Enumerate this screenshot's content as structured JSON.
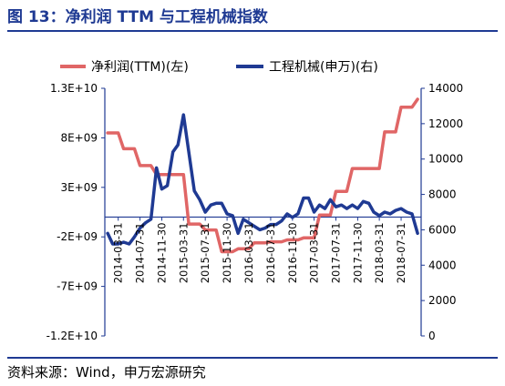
{
  "header": {
    "title": "图 13：净利润 TTM 与工程机械指数"
  },
  "footer": {
    "source": "资料来源：Wind，申万宏源研究"
  },
  "chart_data": {
    "type": "line",
    "legend_position": "top",
    "grid": false,
    "x_tick_labels": [
      "2014-03-31",
      "2014-07-31",
      "2014-11-30",
      "2015-03-31",
      "2015-07-31",
      "2015-11-30",
      "2016-03-31",
      "2016-07-31",
      "2016-11-30",
      "2017-03-31",
      "2017-07-31",
      "2017-11-30",
      "2018-03-31",
      "2018-07-31"
    ],
    "y_left": {
      "min": -12000000000,
      "max": 13000000000,
      "tick_labels": [
        "1.3E+10",
        "8E+09",
        "3E+09",
        "-2E+09",
        "-7E+09",
        "-1.2E+10"
      ]
    },
    "y_right": {
      "min": 0,
      "max": 14000,
      "tick_labels": [
        "14000",
        "12000",
        "10000",
        "8000",
        "6000",
        "4000",
        "2000",
        "0"
      ]
    },
    "series": [
      {
        "name": "净利润(TTM)(左)",
        "axis": "left",
        "color": "#e06666",
        "x": [
          "2014-01-31",
          "2014-03-31",
          "2014-04-30",
          "2014-06-30",
          "2014-07-31",
          "2014-09-30",
          "2014-10-31",
          "2014-12-31",
          "2015-01-31",
          "2015-03-31",
          "2015-04-30",
          "2015-06-30",
          "2015-07-31",
          "2015-09-30",
          "2015-10-31",
          "2015-12-31",
          "2016-01-31",
          "2016-03-31",
          "2016-04-30",
          "2016-06-30",
          "2016-07-31",
          "2016-09-30",
          "2016-10-31",
          "2016-12-31",
          "2017-01-31",
          "2017-03-31",
          "2017-04-30",
          "2017-06-30",
          "2017-07-31",
          "2017-09-30",
          "2017-10-31",
          "2017-12-31",
          "2018-01-31",
          "2018-03-31",
          "2018-04-30",
          "2018-06-30",
          "2018-07-31",
          "2018-09-30",
          "2018-10-31"
        ],
        "values": [
          8500000000.0,
          8500000000.0,
          6900000000.0,
          6900000000.0,
          5200000000.0,
          5200000000.0,
          4300000000.0,
          4300000000.0,
          4300000000.0,
          4300000000.0,
          -700000000.0,
          -700000000.0,
          -1300000000.0,
          -1300000000.0,
          -3500000000.0,
          -3500000000.0,
          -3200000000.0,
          -3200000000.0,
          -2600000000.0,
          -2600000000.0,
          -2500000000.0,
          -2500000000.0,
          -2300000000.0,
          -2300000000.0,
          -2100000000.0,
          -2100000000.0,
          200000000.0,
          200000000.0,
          2600000000.0,
          2600000000.0,
          4900000000.0,
          4900000000.0,
          4900000000.0,
          4900000000.0,
          8600000000.0,
          8600000000.0,
          11100000000.0,
          11100000000.0,
          11900000000.0
        ]
      },
      {
        "name": "工程机械(申万)(右)",
        "axis": "right",
        "color": "#1f3a93",
        "x": [
          "2014-01-31",
          "2014-02-28",
          "2014-03-31",
          "2014-04-30",
          "2014-05-31",
          "2014-06-30",
          "2014-07-31",
          "2014-08-31",
          "2014-09-30",
          "2014-10-31",
          "2014-11-30",
          "2014-12-31",
          "2015-01-31",
          "2015-02-28",
          "2015-03-31",
          "2015-04-30",
          "2015-05-31",
          "2015-06-30",
          "2015-07-31",
          "2015-08-31",
          "2015-09-30",
          "2015-10-31",
          "2015-11-30",
          "2015-12-31",
          "2016-01-31",
          "2016-02-29",
          "2016-03-31",
          "2016-04-30",
          "2016-05-31",
          "2016-06-30",
          "2016-07-31",
          "2016-08-31",
          "2016-09-30",
          "2016-10-31",
          "2016-11-30",
          "2016-12-31",
          "2017-01-31",
          "2017-02-28",
          "2017-03-31",
          "2017-04-30",
          "2017-05-31",
          "2017-06-30",
          "2017-07-31",
          "2017-08-31",
          "2017-09-30",
          "2017-10-31",
          "2017-11-30",
          "2017-12-31",
          "2018-01-31",
          "2018-02-28",
          "2018-03-31",
          "2018-04-30",
          "2018-05-31",
          "2018-06-30",
          "2018-07-31",
          "2018-08-31",
          "2018-09-30",
          "2018-10-31"
        ],
        "values": [
          5800,
          5200,
          5200,
          5300,
          5200,
          5600,
          6100,
          6400,
          6600,
          9500,
          8300,
          8500,
          10400,
          10800,
          12500,
          10400,
          8200,
          7700,
          7000,
          7400,
          7500,
          7500,
          6900,
          6800,
          5800,
          6600,
          6400,
          6200,
          6000,
          6100,
          6300,
          6300,
          6500,
          6900,
          6700,
          6900,
          7800,
          7800,
          7000,
          7400,
          7200,
          7700,
          7300,
          7400,
          7200,
          7400,
          7200,
          7600,
          7500,
          7000,
          6800,
          7000,
          6900,
          7100,
          7200,
          7000,
          6900,
          5800
        ]
      }
    ]
  }
}
